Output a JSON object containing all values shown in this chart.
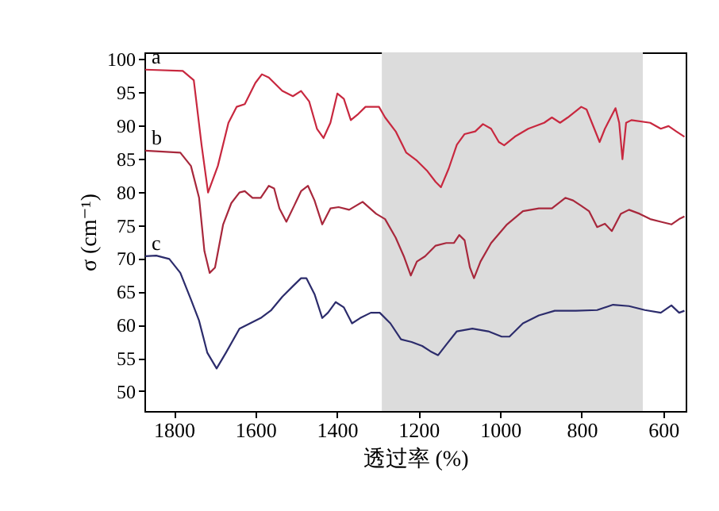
{
  "chart_data": {
    "type": "line",
    "xlabel": "透过率 (%)",
    "ylabel": "σ (cm⁻¹)",
    "xlim": [
      1872,
      545
    ],
    "xticks": [
      1800,
      1600,
      1400,
      1200,
      1000,
      800,
      600
    ],
    "ylim": [
      47,
      101
    ],
    "yticks": [
      50,
      55,
      60,
      65,
      70,
      75,
      80,
      85,
      90,
      95,
      100
    ],
    "grid": false,
    "legend": false,
    "line_style": "solid",
    "marker": "none",
    "bands": [
      {
        "axis": "x",
        "from": 1290,
        "to": 650,
        "color": "#dcdcdc"
      }
    ],
    "series": [
      {
        "name": "a",
        "color": "#c8283f",
        "x": [
          1870,
          1778,
          1751,
          1732,
          1716,
          1692,
          1666,
          1646,
          1626,
          1600,
          1584,
          1567,
          1534,
          1508,
          1488,
          1468,
          1449,
          1433,
          1416,
          1399,
          1383,
          1366,
          1350,
          1330,
          1297,
          1282,
          1256,
          1230,
          1204,
          1178,
          1158,
          1145,
          1126,
          1106,
          1087,
          1061,
          1042,
          1022,
          1003,
          990,
          964,
          931,
          892,
          873,
          853,
          834,
          801,
          788,
          769,
          756,
          743,
          717,
          708,
          700,
          691,
          678,
          632,
          606,
          587,
          568,
          548
        ],
        "values": [
          98.4,
          98.2,
          96.8,
          87.1,
          79.9,
          83.9,
          90.4,
          92.8,
          93.2,
          96.4,
          97.7,
          97.2,
          95.2,
          94.4,
          95.2,
          93.6,
          89.5,
          88.1,
          90.4,
          94.8,
          94.0,
          90.8,
          91.6,
          92.8,
          92.8,
          91.2,
          89.1,
          85.9,
          84.7,
          83.1,
          81.5,
          80.7,
          83.5,
          87.1,
          88.7,
          89.1,
          90.2,
          89.5,
          87.5,
          87.0,
          88.3,
          89.5,
          90.4,
          91.2,
          90.4,
          91.2,
          92.8,
          92.4,
          89.5,
          87.5,
          89.5,
          92.6,
          90.4,
          84.9,
          90.4,
          90.8,
          90.4,
          89.5,
          89.9,
          89.1,
          88.3
        ]
      },
      {
        "name": "b",
        "color": "#a8283c",
        "x": [
          1870,
          1784,
          1758,
          1738,
          1725,
          1712,
          1699,
          1679,
          1659,
          1639,
          1626,
          1607,
          1587,
          1567,
          1554,
          1541,
          1524,
          1505,
          1488,
          1471,
          1455,
          1436,
          1416,
          1396,
          1370,
          1337,
          1304,
          1282,
          1256,
          1236,
          1219,
          1204,
          1184,
          1158,
          1132,
          1113,
          1100,
          1087,
          1074,
          1064,
          1048,
          1022,
          983,
          944,
          905,
          873,
          840,
          821,
          801,
          782,
          762,
          743,
          726,
          704,
          684,
          658,
          632,
          606,
          580,
          561,
          548
        ],
        "values": [
          86.2,
          85.9,
          83.9,
          79.1,
          71.1,
          67.8,
          68.6,
          75.1,
          78.3,
          79.9,
          80.1,
          79.1,
          79.1,
          80.9,
          80.5,
          77.5,
          75.5,
          77.9,
          80.1,
          80.9,
          78.7,
          75.1,
          77.5,
          77.7,
          77.3,
          78.5,
          76.7,
          75.9,
          73.1,
          70.3,
          67.4,
          69.5,
          70.3,
          71.9,
          72.3,
          72.3,
          73.5,
          72.7,
          68.6,
          67.0,
          69.5,
          72.3,
          75.1,
          77.1,
          77.5,
          77.5,
          79.1,
          78.7,
          77.9,
          77.1,
          74.7,
          75.2,
          74.1,
          76.7,
          77.3,
          76.7,
          75.9,
          75.5,
          75.1,
          75.9,
          76.3
        ]
      },
      {
        "name": "c",
        "color": "#2c2c6c",
        "x": [
          1870,
          1843,
          1811,
          1784,
          1758,
          1738,
          1718,
          1695,
          1672,
          1639,
          1613,
          1587,
          1561,
          1534,
          1508,
          1488,
          1475,
          1455,
          1436,
          1422,
          1403,
          1383,
          1363,
          1343,
          1317,
          1295,
          1269,
          1243,
          1217,
          1191,
          1171,
          1152,
          1132,
          1106,
          1068,
          1029,
          996,
          977,
          944,
          905,
          866,
          814,
          762,
          723,
          684,
          645,
          606,
          580,
          561,
          548
        ],
        "values": [
          70.3,
          70.4,
          69.9,
          67.8,
          63.8,
          60.6,
          55.8,
          53.4,
          55.8,
          59.4,
          60.2,
          61.0,
          62.2,
          64.2,
          65.8,
          67.0,
          67.0,
          64.6,
          61.0,
          61.8,
          63.4,
          62.6,
          60.2,
          61.0,
          61.8,
          61.8,
          60.2,
          57.8,
          57.4,
          56.8,
          56.0,
          55.4,
          57.0,
          59.0,
          59.4,
          59.0,
          58.2,
          58.2,
          60.2,
          61.4,
          62.1,
          62.1,
          62.2,
          63.0,
          62.8,
          62.2,
          61.8,
          62.9,
          61.8,
          62.1
        ]
      }
    ]
  }
}
